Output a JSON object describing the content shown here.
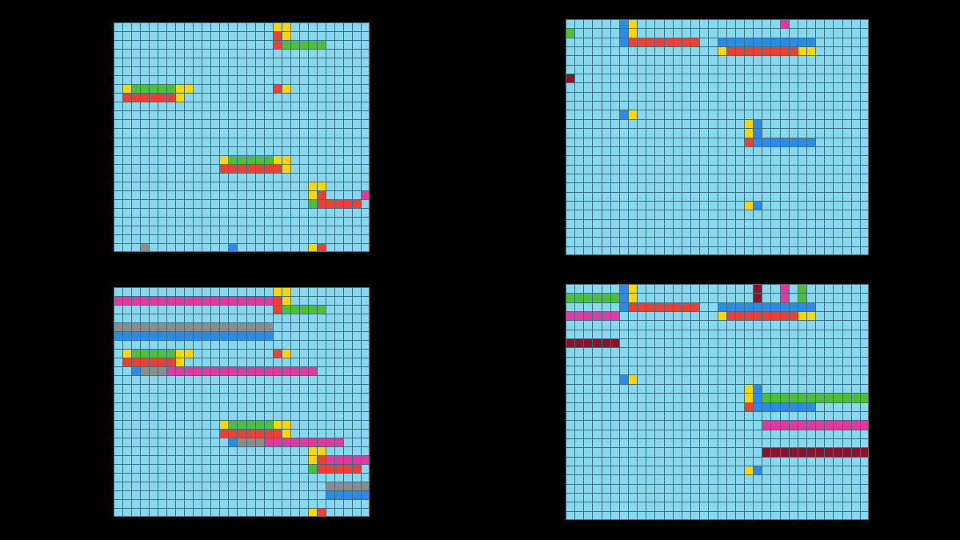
{
  "palette": {
    "background": "#87d8ee",
    "gridline": "#3a7080",
    "Y": "#ffd700",
    "R": "#ec4034",
    "G": "#4dbf3a",
    "B": "#2b8ce8",
    "M": "#e0399f",
    "K": "#8c8c8c",
    "D": "#85142c"
  },
  "grids": [
    {
      "name": "grid-top-left",
      "cols": 29,
      "rows": 26,
      "runs": [
        [
          0,
          18,
          "Y"
        ],
        [
          0,
          19,
          "Y"
        ],
        [
          1,
          18,
          "R"
        ],
        [
          1,
          19,
          "Y"
        ],
        [
          2,
          18,
          "R",
          5
        ],
        [
          2,
          19,
          "G",
          5
        ],
        [
          7,
          18,
          "R"
        ],
        [
          7,
          19,
          "Y"
        ],
        [
          7,
          1,
          "Y"
        ],
        [
          7,
          2,
          "G",
          5
        ],
        [
          7,
          7,
          "Y",
          2
        ],
        [
          8,
          1,
          "R",
          6
        ],
        [
          8,
          7,
          "Y"
        ],
        [
          15,
          12,
          "Y"
        ],
        [
          15,
          13,
          "G",
          5
        ],
        [
          15,
          18,
          "Y",
          2
        ],
        [
          16,
          12,
          "R",
          6
        ],
        [
          16,
          18,
          "R"
        ],
        [
          16,
          19,
          "Y"
        ],
        [
          18,
          22,
          "Y",
          2
        ],
        [
          19,
          22,
          "Y"
        ],
        [
          19,
          23,
          "R"
        ],
        [
          19,
          28,
          "M"
        ],
        [
          20,
          22,
          "G",
          5
        ],
        [
          20,
          23,
          "R",
          5
        ],
        [
          25,
          22,
          "Y"
        ],
        [
          25,
          23,
          "R"
        ],
        [
          25,
          3,
          "K"
        ],
        [
          25,
          13,
          "B"
        ]
      ]
    },
    {
      "name": "grid-top-right",
      "cols": 34,
      "rows": 26,
      "runs": [
        [
          0,
          6,
          "B"
        ],
        [
          0,
          7,
          "Y"
        ],
        [
          0,
          24,
          "M"
        ],
        [
          1,
          0,
          "G"
        ],
        [
          1,
          6,
          "B"
        ],
        [
          1,
          7,
          "Y"
        ],
        [
          2,
          6,
          "B",
          8
        ],
        [
          2,
          7,
          "R",
          8
        ],
        [
          2,
          17,
          "B",
          11
        ],
        [
          3,
          17,
          "Y"
        ],
        [
          3,
          18,
          "R",
          8
        ],
        [
          3,
          26,
          "Y",
          2
        ],
        [
          6,
          0,
          "D"
        ],
        [
          10,
          6,
          "B"
        ],
        [
          10,
          7,
          "Y"
        ],
        [
          11,
          20,
          "Y"
        ],
        [
          11,
          21,
          "B"
        ],
        [
          12,
          20,
          "Y"
        ],
        [
          12,
          21,
          "B"
        ],
        [
          13,
          20,
          "R",
          7
        ],
        [
          13,
          21,
          "B",
          7
        ],
        [
          20,
          20,
          "Y"
        ],
        [
          20,
          21,
          "B"
        ]
      ]
    },
    {
      "name": "grid-bottom-left",
      "cols": 29,
      "rows": 26,
      "runs": [
        [
          0,
          18,
          "Y"
        ],
        [
          0,
          19,
          "Y"
        ],
        [
          1,
          0,
          "M",
          18
        ],
        [
          1,
          18,
          "R"
        ],
        [
          1,
          19,
          "Y"
        ],
        [
          2,
          18,
          "R",
          5
        ],
        [
          2,
          19,
          "G",
          5
        ],
        [
          4,
          0,
          "K",
          18
        ],
        [
          5,
          0,
          "B",
          18
        ],
        [
          7,
          18,
          "R"
        ],
        [
          7,
          19,
          "Y"
        ],
        [
          7,
          1,
          "Y"
        ],
        [
          7,
          2,
          "G",
          5
        ],
        [
          7,
          7,
          "Y",
          2
        ],
        [
          8,
          1,
          "R",
          6
        ],
        [
          8,
          7,
          "Y"
        ],
        [
          9,
          2,
          "B",
          17
        ],
        [
          9,
          3,
          "K",
          17
        ],
        [
          9,
          6,
          "M",
          17
        ],
        [
          15,
          12,
          "Y"
        ],
        [
          15,
          13,
          "G",
          5
        ],
        [
          15,
          18,
          "Y",
          2
        ],
        [
          16,
          12,
          "R",
          6
        ],
        [
          16,
          18,
          "R"
        ],
        [
          16,
          19,
          "Y"
        ],
        [
          17,
          13,
          "B",
          9
        ],
        [
          17,
          14,
          "K",
          9
        ],
        [
          17,
          17,
          "M",
          9
        ],
        [
          18,
          22,
          "Y",
          2
        ],
        [
          19,
          22,
          "Y"
        ],
        [
          19,
          23,
          "R"
        ],
        [
          19,
          24,
          "M",
          5
        ],
        [
          20,
          22,
          "G",
          5
        ],
        [
          20,
          23,
          "R",
          5
        ],
        [
          22,
          24,
          "K",
          5
        ],
        [
          23,
          24,
          "B",
          5
        ],
        [
          25,
          22,
          "Y"
        ],
        [
          25,
          23,
          "R"
        ]
      ]
    },
    {
      "name": "grid-bottom-right",
      "cols": 34,
      "rows": 26,
      "runs": [
        [
          0,
          6,
          "B"
        ],
        [
          0,
          7,
          "Y"
        ],
        [
          0,
          21,
          "D"
        ],
        [
          0,
          24,
          "M"
        ],
        [
          0,
          26,
          "G"
        ],
        [
          1,
          0,
          "G",
          6
        ],
        [
          1,
          6,
          "B"
        ],
        [
          1,
          7,
          "Y"
        ],
        [
          1,
          21,
          "D"
        ],
        [
          1,
          24,
          "M"
        ],
        [
          1,
          26,
          "G"
        ],
        [
          2,
          6,
          "B",
          8
        ],
        [
          2,
          7,
          "R",
          8
        ],
        [
          2,
          17,
          "B",
          11
        ],
        [
          3,
          0,
          "M",
          6
        ],
        [
          3,
          17,
          "Y"
        ],
        [
          3,
          18,
          "R",
          8
        ],
        [
          3,
          26,
          "Y",
          2
        ],
        [
          6,
          0,
          "D",
          6
        ],
        [
          10,
          6,
          "B"
        ],
        [
          10,
          7,
          "Y"
        ],
        [
          11,
          20,
          "Y"
        ],
        [
          11,
          21,
          "B"
        ],
        [
          12,
          20,
          "Y"
        ],
        [
          12,
          21,
          "B"
        ],
        [
          12,
          22,
          "G",
          12
        ],
        [
          13,
          20,
          "R",
          7
        ],
        [
          13,
          21,
          "B",
          7
        ],
        [
          15,
          22,
          "M",
          12
        ],
        [
          18,
          22,
          "D",
          12
        ],
        [
          20,
          20,
          "Y"
        ],
        [
          20,
          21,
          "B"
        ]
      ]
    }
  ]
}
